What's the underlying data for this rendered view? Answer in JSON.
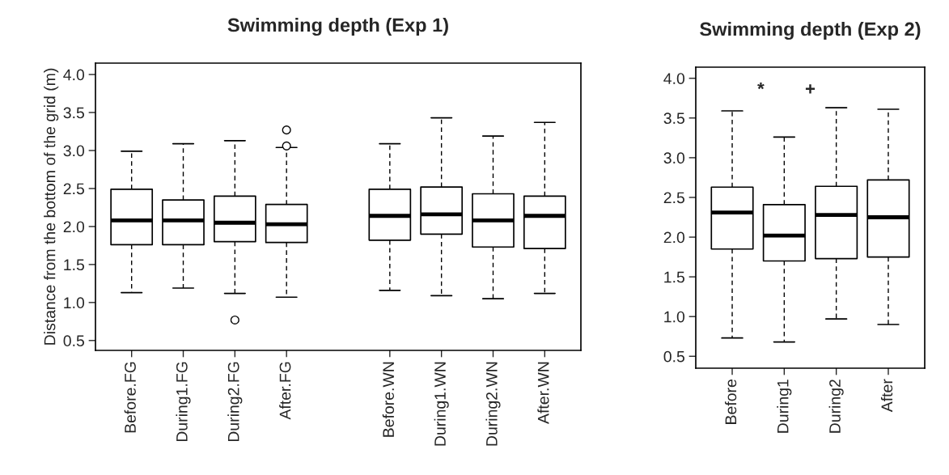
{
  "chart_data": [
    {
      "type": "box",
      "title": "Swimming depth (Exp 1)",
      "ylabel": "Distance from the bottom of the grid (m)",
      "categories": [
        "Before.FG",
        "During1.FG",
        "During2.FG",
        "After.FG",
        null,
        "Before.WN",
        "During1.WN",
        "During2.WN",
        "After.WN"
      ],
      "boxes": [
        {
          "low": 1.13,
          "q1": 1.76,
          "median": 2.08,
          "q3": 2.49,
          "high": 2.99
        },
        {
          "low": 1.19,
          "q1": 1.76,
          "median": 2.08,
          "q3": 2.35,
          "high": 3.09
        },
        {
          "low": 1.12,
          "q1": 1.8,
          "median": 2.05,
          "q3": 2.4,
          "high": 3.13,
          "outliers": [
            0.77
          ]
        },
        {
          "low": 1.07,
          "q1": 1.79,
          "median": 2.03,
          "q3": 2.29,
          "high": 3.04,
          "outliers": [
            3.06,
            3.27
          ]
        },
        null,
        {
          "low": 1.16,
          "q1": 1.82,
          "median": 2.14,
          "q3": 2.49,
          "high": 3.09
        },
        {
          "low": 1.09,
          "q1": 1.9,
          "median": 2.16,
          "q3": 2.52,
          "high": 3.43
        },
        {
          "low": 1.05,
          "q1": 1.73,
          "median": 2.08,
          "q3": 2.43,
          "high": 3.19
        },
        {
          "low": 1.12,
          "q1": 1.71,
          "median": 2.14,
          "q3": 2.4,
          "high": 3.37
        }
      ],
      "ylim": [
        0.37,
        4.15
      ],
      "yticks": [
        {
          "value": 0.5,
          "label": "0.5"
        },
        {
          "value": 1.0,
          "label": "1.0"
        },
        {
          "value": 1.5,
          "label": "1.5"
        },
        {
          "value": 2.0,
          "label": "2.0"
        },
        {
          "value": 2.5,
          "label": "2.5"
        },
        {
          "value": 3.0,
          "label": "3.0"
        },
        {
          "value": 3.5,
          "label": "3.5"
        },
        {
          "value": 4.0,
          "label": "4.0"
        }
      ],
      "grid": false
    },
    {
      "type": "box",
      "title": "Swimming depth (Exp 2)",
      "categories": [
        "Before",
        "During1",
        "During2",
        "After"
      ],
      "boxes": [
        {
          "low": 0.73,
          "q1": 1.85,
          "median": 2.31,
          "q3": 2.63,
          "high": 3.59
        },
        {
          "low": 0.68,
          "q1": 1.7,
          "median": 2.02,
          "q3": 2.41,
          "high": 3.26
        },
        {
          "low": 0.97,
          "q1": 1.73,
          "median": 2.28,
          "q3": 2.64,
          "high": 3.63
        },
        {
          "low": 0.9,
          "q1": 1.75,
          "median": 2.25,
          "q3": 2.72,
          "high": 3.61
        }
      ],
      "annotations": [
        "*",
        "+"
      ],
      "ylim": [
        0.35,
        4.14
      ],
      "yticks": [
        {
          "value": 0.5,
          "label": "0.5"
        },
        {
          "value": 1.0,
          "label": "1.0"
        },
        {
          "value": 1.5,
          "label": "1.5"
        },
        {
          "value": 2.0,
          "label": "2.0"
        },
        {
          "value": 2.5,
          "label": "2.5"
        },
        {
          "value": 3.0,
          "label": "3.0"
        },
        {
          "value": 3.5,
          "label": "3.5"
        },
        {
          "value": 4.0,
          "label": "4.0"
        }
      ],
      "grid": false
    }
  ]
}
